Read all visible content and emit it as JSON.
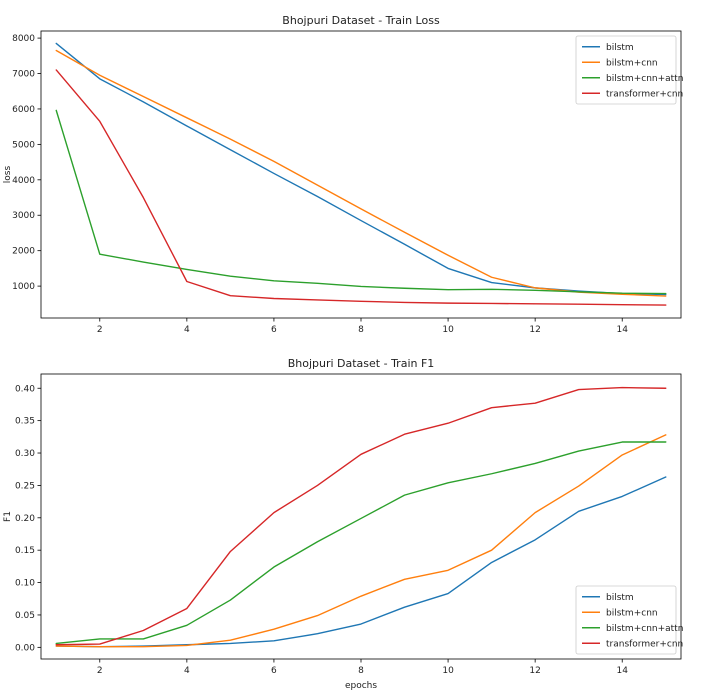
{
  "chart_data": [
    {
      "type": "line",
      "title": "Bhojpuri Dataset - Train Loss",
      "xlabel": "",
      "ylabel": "loss",
      "xlim": [
        0.65,
        15.35
      ],
      "ylim": [
        100,
        8200
      ],
      "xticks": [
        2,
        4,
        6,
        8,
        10,
        12,
        14
      ],
      "yticks": [
        1000,
        2000,
        3000,
        4000,
        5000,
        6000,
        7000,
        8000
      ],
      "legend_position": "top-right",
      "x": [
        1,
        2,
        3,
        4,
        5,
        6,
        7,
        8,
        9,
        10,
        11,
        12,
        13,
        14,
        15
      ],
      "series": [
        {
          "name": "bilstm",
          "color": "#1f77b4",
          "values": [
            7850,
            6850,
            6200,
            5520,
            4850,
            4180,
            3530,
            2850,
            2180,
            1500,
            1100,
            950,
            860,
            790,
            760
          ]
        },
        {
          "name": "bilstm+cnn",
          "color": "#ff7f0e",
          "values": [
            7650,
            6950,
            6350,
            5750,
            5150,
            4520,
            3850,
            3180,
            2520,
            1870,
            1250,
            950,
            830,
            770,
            720
          ]
        },
        {
          "name": "bilstm+cnn+attn",
          "color": "#2ca02c",
          "values": [
            5960,
            1900,
            1680,
            1470,
            1280,
            1150,
            1080,
            990,
            940,
            900,
            910,
            880,
            840,
            800,
            790
          ]
        },
        {
          "name": "transformer+cnn",
          "color": "#d62728",
          "values": [
            7100,
            5650,
            3500,
            1130,
            730,
            650,
            610,
            570,
            540,
            520,
            510,
            500,
            490,
            475,
            465
          ]
        }
      ]
    },
    {
      "type": "line",
      "title": "Bhojpuri Dataset - Train F1",
      "xlabel": "epochs",
      "ylabel": "F1",
      "xlim": [
        0.65,
        15.35
      ],
      "ylim": [
        -0.018,
        0.422
      ],
      "xticks": [
        2,
        4,
        6,
        8,
        10,
        12,
        14
      ],
      "yticks": [
        0.0,
        0.05,
        0.1,
        0.15,
        0.2,
        0.25,
        0.3,
        0.35,
        0.4
      ],
      "ytick_labels": [
        "0.00",
        "0.05",
        "0.10",
        "0.15",
        "0.20",
        "0.25",
        "0.30",
        "0.35",
        "0.40"
      ],
      "legend_position": "bottom-right",
      "x": [
        1,
        2,
        3,
        4,
        5,
        6,
        7,
        8,
        9,
        10,
        11,
        12,
        13,
        14,
        15
      ],
      "series": [
        {
          "name": "bilstm",
          "color": "#1f77b4",
          "values": [
            0.002,
            0.001,
            0.002,
            0.004,
            0.006,
            0.01,
            0.021,
            0.036,
            0.062,
            0.083,
            0.131,
            0.166,
            0.21,
            0.233,
            0.263
          ]
        },
        {
          "name": "bilstm+cnn",
          "color": "#ff7f0e",
          "values": [
            0.002,
            0.001,
            0.001,
            0.003,
            0.011,
            0.028,
            0.049,
            0.079,
            0.105,
            0.119,
            0.15,
            0.208,
            0.249,
            0.297,
            0.328
          ]
        },
        {
          "name": "bilstm+cnn+attn",
          "color": "#2ca02c",
          "values": [
            0.006,
            0.013,
            0.013,
            0.034,
            0.073,
            0.124,
            0.163,
            0.199,
            0.235,
            0.254,
            0.268,
            0.284,
            0.303,
            0.317,
            0.317
          ]
        },
        {
          "name": "transformer+cnn",
          "color": "#d62728",
          "values": [
            0.004,
            0.005,
            0.026,
            0.06,
            0.148,
            0.208,
            0.25,
            0.298,
            0.329,
            0.346,
            0.37,
            0.377,
            0.398,
            0.401,
            0.4
          ]
        }
      ]
    }
  ]
}
